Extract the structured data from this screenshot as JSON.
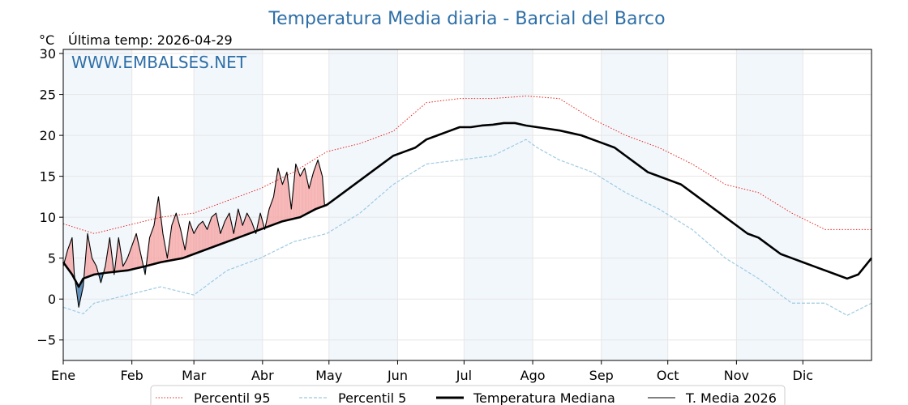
{
  "title": "Temperatura Media diaria - Barcial del Barco",
  "unit_label": "°C",
  "last_temp_label": "Última temp: 2026-04-29",
  "watermark": "WWW.EMBALSES.NET",
  "chart_data": {
    "type": "line",
    "title": "Temperatura Media diaria - Barcial del Barco",
    "ylabel": "°C",
    "xlabel": "",
    "ylim": [
      -7.5,
      30.5
    ],
    "yticks": [
      -5,
      0,
      5,
      10,
      15,
      20,
      25,
      30
    ],
    "xlim": [
      1,
      366
    ],
    "month_labels": [
      "Ene",
      "Feb",
      "Mar",
      "Abr",
      "May",
      "Jun",
      "Jul",
      "Ago",
      "Sep",
      "Oct",
      "Nov",
      "Dic"
    ],
    "month_start_days": [
      1,
      32,
      60,
      91,
      121,
      152,
      182,
      213,
      244,
      274,
      305,
      335
    ],
    "grid": true,
    "alternate_month_shading": true,
    "legend_position": "bottom",
    "fill_above_median_color": "#f4a6a6",
    "fill_below_median_color": "#4a7fae",
    "series": [
      {
        "name": "Percentil 95",
        "color": "#e8251f",
        "style": "dotted",
        "x": [
          1,
          15,
          30,
          45,
          60,
          75,
          90,
          105,
          120,
          135,
          150,
          165,
          180,
          195,
          210,
          225,
          240,
          255,
          270,
          285,
          300,
          315,
          330,
          345,
          366
        ],
        "y": [
          9.2,
          8.0,
          9.0,
          10.0,
          10.5,
          12.0,
          13.5,
          15.5,
          18.0,
          19.0,
          20.5,
          24.0,
          24.5,
          24.5,
          24.8,
          24.5,
          22.0,
          20.0,
          18.5,
          16.5,
          14.0,
          13.0,
          10.5,
          8.5,
          8.5
        ]
      },
      {
        "name": "Percentil 5",
        "color": "#9ecae1",
        "style": "dashed",
        "x": [
          1,
          10,
          15,
          30,
          45,
          60,
          75,
          90,
          105,
          120,
          135,
          150,
          165,
          180,
          195,
          210,
          215,
          225,
          240,
          255,
          270,
          285,
          300,
          315,
          330,
          345,
          355,
          366
        ],
        "y": [
          -1.0,
          -1.8,
          -0.5,
          0.5,
          1.5,
          0.5,
          3.5,
          5.0,
          7.0,
          8.0,
          10.5,
          14.0,
          16.5,
          17.0,
          17.5,
          19.5,
          18.5,
          17.0,
          15.5,
          13.0,
          11.0,
          8.5,
          5.0,
          2.5,
          -0.5,
          -0.5,
          -2.0,
          -0.5
        ]
      },
      {
        "name": "Temperatura Mediana",
        "color": "#000000",
        "style": "solid-thick",
        "x": [
          1,
          5,
          8,
          10,
          15,
          20,
          30,
          38,
          45,
          55,
          60,
          70,
          80,
          90,
          100,
          108,
          115,
          120,
          125,
          130,
          135,
          140,
          145,
          150,
          155,
          160,
          165,
          170,
          175,
          180,
          185,
          190,
          195,
          200,
          205,
          210,
          215,
          220,
          225,
          230,
          235,
          240,
          245,
          250,
          255,
          260,
          265,
          270,
          275,
          280,
          285,
          290,
          295,
          300,
          305,
          310,
          315,
          320,
          325,
          330,
          335,
          340,
          345,
          350,
          355,
          360,
          366
        ],
        "y": [
          4.5,
          3.0,
          1.5,
          2.5,
          3.0,
          3.2,
          3.5,
          4.0,
          4.5,
          5.0,
          5.5,
          6.5,
          7.5,
          8.5,
          9.5,
          10.0,
          11.0,
          11.5,
          12.5,
          13.5,
          14.5,
          15.5,
          16.5,
          17.5,
          18.0,
          18.5,
          19.5,
          20.0,
          20.5,
          21.0,
          21.0,
          21.2,
          21.3,
          21.5,
          21.5,
          21.2,
          21.0,
          20.8,
          20.6,
          20.3,
          20.0,
          19.5,
          19.0,
          18.5,
          17.5,
          16.5,
          15.5,
          15.0,
          14.5,
          14.0,
          13.0,
          12.0,
          11.0,
          10.0,
          9.0,
          8.0,
          7.5,
          6.5,
          5.5,
          5.0,
          4.5,
          4.0,
          3.5,
          3.0,
          2.5,
          3.0,
          5.0
        ]
      },
      {
        "name": "T. Media 2026",
        "color": "#000000",
        "style": "solid-thin",
        "x": [
          1,
          3,
          5,
          6,
          8,
          10,
          12,
          14,
          16,
          18,
          20,
          22,
          24,
          26,
          28,
          30,
          32,
          34,
          36,
          38,
          40,
          42,
          44,
          46,
          48,
          50,
          52,
          54,
          56,
          58,
          60,
          62,
          64,
          66,
          68,
          70,
          72,
          74,
          76,
          78,
          80,
          82,
          84,
          86,
          88,
          90,
          92,
          94,
          96,
          98,
          100,
          102,
          104,
          106,
          108,
          110,
          112,
          114,
          116,
          118,
          119
        ],
        "y": [
          4.0,
          6.0,
          7.5,
          3.0,
          -1.0,
          1.5,
          8.0,
          5.0,
          4.0,
          2.0,
          4.0,
          7.5,
          3.0,
          7.5,
          4.0,
          5.0,
          6.5,
          8.0,
          5.5,
          3.0,
          7.5,
          9.0,
          12.5,
          8.0,
          5.0,
          9.0,
          10.5,
          8.5,
          6.0,
          9.5,
          8.0,
          9.0,
          9.5,
          8.5,
          10.0,
          10.5,
          8.0,
          9.5,
          10.5,
          8.0,
          11.0,
          9.0,
          10.5,
          9.5,
          8.0,
          10.5,
          8.5,
          11.0,
          12.5,
          16.0,
          14.0,
          15.5,
          11.0,
          16.5,
          15.0,
          16.0,
          13.5,
          15.5,
          17.0,
          15.0,
          11.5
        ]
      }
    ]
  }
}
